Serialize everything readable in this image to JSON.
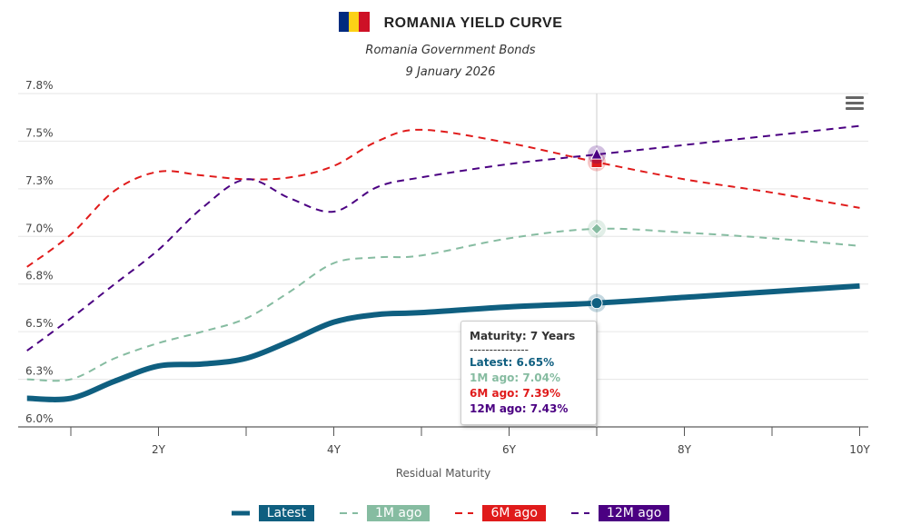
{
  "header": {
    "title": "ROMANIA YIELD CURVE",
    "subtitle": "Romania Government Bonds",
    "date": "9 January 2026",
    "flag_colors": [
      "#002B7F",
      "#FCD116",
      "#CE1126"
    ],
    "menu_icon": "hamburger-menu-icon"
  },
  "tooltip": {
    "title": "Maturity: 7 Years",
    "separator": "---------------",
    "lines": [
      "Latest: 6.65%",
      "1M ago: 7.04%",
      "6M ago: 7.39%",
      "12M ago: 7.43%"
    ]
  },
  "chart_data": {
    "type": "line",
    "title": "ROMANIA YIELD CURVE",
    "xlabel": "Residual Maturity",
    "ylabel": "",
    "xlim": [
      0.5,
      10
    ],
    "ylim": [
      6.0,
      7.75
    ],
    "grid": true,
    "legend_placement": "bottom",
    "x_ticks": [
      {
        "v": 2,
        "label": "2Y"
      },
      {
        "v": 4,
        "label": "4Y"
      },
      {
        "v": 6,
        "label": "6Y"
      },
      {
        "v": 8,
        "label": "8Y"
      },
      {
        "v": 10,
        "label": "10Y"
      }
    ],
    "x_minor_ticks": [
      1,
      3,
      5,
      7,
      9
    ],
    "y_ticks": [
      {
        "v": 6.0,
        "label": "6.0%"
      },
      {
        "v": 6.25,
        "label": "6.3%"
      },
      {
        "v": 6.5,
        "label": "6.5%"
      },
      {
        "v": 6.75,
        "label": "6.8%"
      },
      {
        "v": 7.0,
        "label": "7.0%"
      },
      {
        "v": 7.25,
        "label": "7.3%"
      },
      {
        "v": 7.5,
        "label": "7.5%"
      },
      {
        "v": 7.75,
        "label": "7.8%"
      }
    ],
    "x": [
      0.5,
      1,
      1.5,
      2,
      2.5,
      3,
      3.5,
      4,
      4.5,
      5,
      6,
      7,
      8,
      9,
      10
    ],
    "series": [
      {
        "name": "Latest",
        "color": "#0F5F80",
        "dash": "solid",
        "values": [
          6.15,
          6.15,
          6.24,
          6.32,
          6.33,
          6.36,
          6.45,
          6.55,
          6.59,
          6.6,
          6.63,
          6.65,
          6.68,
          6.71,
          6.74
        ]
      },
      {
        "name": "1M ago",
        "color": "#86BCA1",
        "dash": "dash",
        "values": [
          6.25,
          6.25,
          6.36,
          6.44,
          6.5,
          6.57,
          6.71,
          6.86,
          6.89,
          6.9,
          6.99,
          7.04,
          7.02,
          6.99,
          6.95
        ]
      },
      {
        "name": "6M ago",
        "color": "#E01B1B",
        "dash": "dash",
        "values": [
          6.84,
          7.01,
          7.24,
          7.34,
          7.32,
          7.3,
          7.31,
          7.37,
          7.5,
          7.56,
          7.49,
          7.39,
          7.3,
          7.23,
          7.15
        ]
      },
      {
        "name": "12M ago",
        "color": "#4B0082",
        "dash": "dash",
        "values": [
          6.4,
          6.57,
          6.75,
          6.93,
          7.15,
          7.3,
          7.2,
          7.13,
          7.26,
          7.31,
          7.38,
          7.43,
          7.48,
          7.53,
          7.58
        ]
      }
    ],
    "highlight_x": 7
  }
}
